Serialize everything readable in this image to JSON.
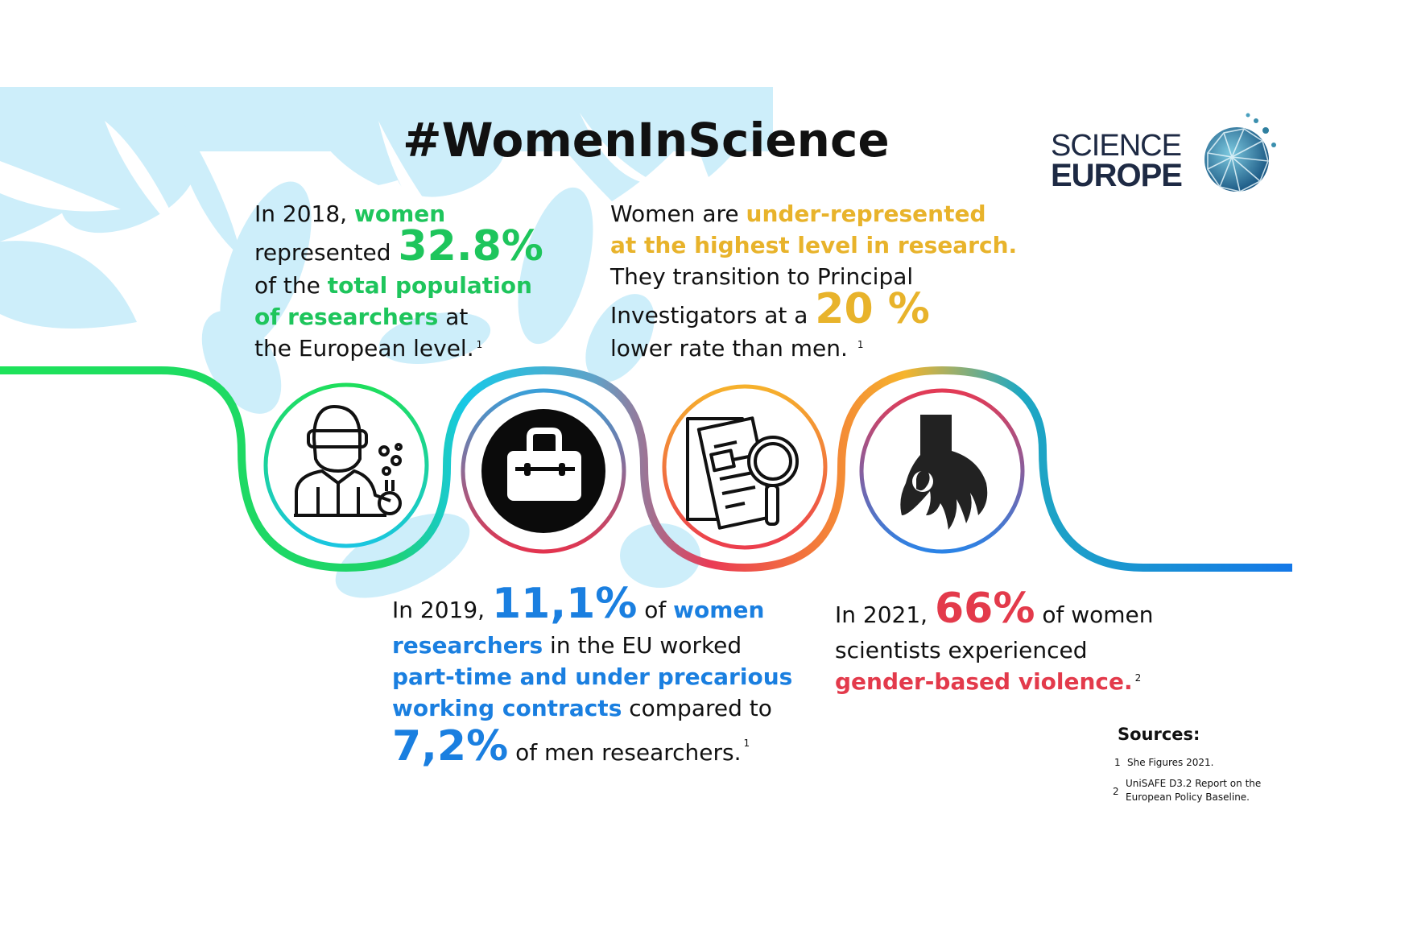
{
  "title": "#WomenInScience",
  "logo": {
    "line1": "SCIENCE",
    "line2": "EUROPE"
  },
  "colors": {
    "green": "#1ec55c",
    "gold": "#e8b32b",
    "blue": "#1a7fe0",
    "red": "#e33a4b",
    "leaf": "#cdeefa",
    "navy": "#1e2a44"
  },
  "icons": [
    "scientist-icon",
    "briefcase-icon",
    "document-magnifier-icon",
    "hand-violence-icon"
  ],
  "stat1": {
    "l1a": "In 2018, ",
    "l1b": "women",
    "l2a": "represented ",
    "value": "32.8%",
    "l3a": "of the ",
    "l3b": "total population",
    "l4a": "of researchers",
    "l4b": " at",
    "l5": "the European level.",
    "fn": "1"
  },
  "stat2": {
    "l1a": "Women are ",
    "l1b": "under-represented",
    "l2": "at the highest level in research.",
    "l3": "They transition to Principal",
    "l4a": "Investigators at a ",
    "value": "20 %",
    "l5": "lower rate than men. ",
    "fn": "1"
  },
  "stat3": {
    "l1a": "In 2019, ",
    "value1": "11,1%",
    "l1b": " of ",
    "l1c": "women",
    "l2a": "researchers",
    "l2b": " in the EU worked",
    "l3": "part-time and under precarious",
    "l4a": "working contracts",
    "l4b": " compared to",
    "value2": "7,2%",
    "l5": " of men researchers.",
    "fn": "1"
  },
  "stat4": {
    "l1a": "In 2021, ",
    "value": "66%",
    "l1b": " of women",
    "l2": "scientists experienced",
    "l3": "gender-based violence.",
    "fn": "2"
  },
  "sources": {
    "heading": "Sources:",
    "items": [
      {
        "n": "1",
        "text": "She Figures 2021."
      },
      {
        "n": "2",
        "text1": "UniSAFE D3.2 Report on the",
        "text2": "European Policy Baseline."
      }
    ]
  }
}
